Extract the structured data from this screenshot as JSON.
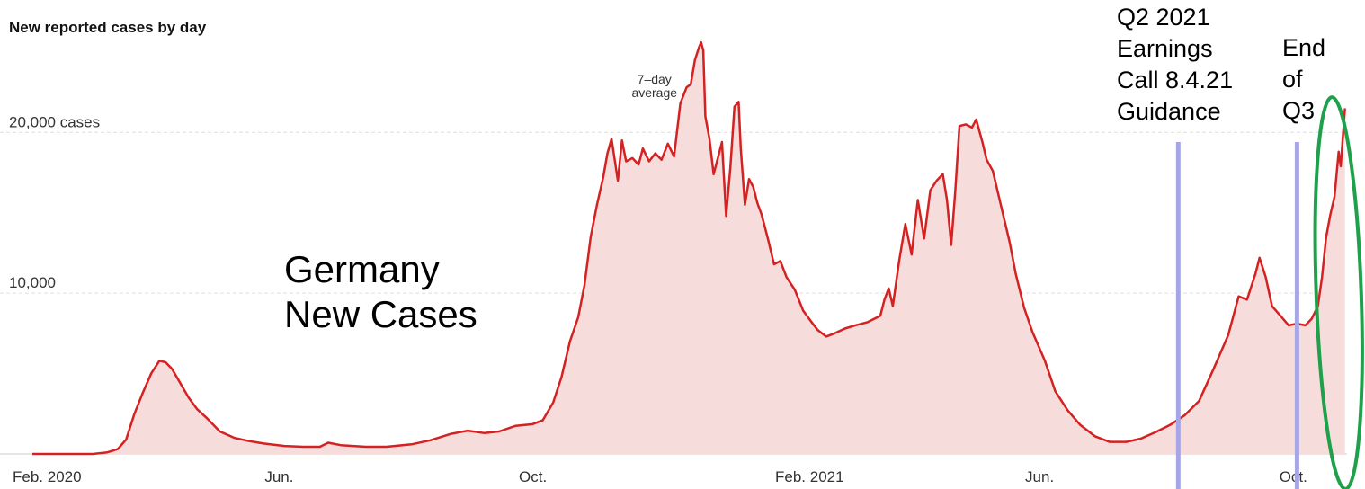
{
  "chart_data": {
    "type": "area",
    "title": "New reported cases by day",
    "xlabel": "",
    "ylabel": "",
    "ylim": [
      0,
      26000
    ],
    "y_ticks": [
      {
        "value": 10000,
        "label": "10,000"
      },
      {
        "value": 20000,
        "label": "20,000 cases"
      }
    ],
    "x_ticks": [
      {
        "value": "2020-02-01",
        "label": "Feb. 2020"
      },
      {
        "value": "2020-06-01",
        "label": "Jun."
      },
      {
        "value": "2020-10-01",
        "label": "Oct."
      },
      {
        "value": "2021-02-01",
        "label": "Feb. 2021"
      },
      {
        "value": "2021-06-01",
        "label": "Jun."
      },
      {
        "value": "2021-10-01",
        "label": "Oct."
      }
    ],
    "xlim": [
      "2020-02-01",
      "2021-10-24"
    ],
    "grid": true,
    "series": [
      {
        "name": "",
        "style": "7-day average",
        "points": [
          [
            "2020-02-01",
            0
          ],
          [
            "2020-02-15",
            0
          ],
          [
            "2020-03-01",
            0
          ],
          [
            "2020-03-08",
            100
          ],
          [
            "2020-03-13",
            300
          ],
          [
            "2020-03-17",
            900
          ],
          [
            "2020-03-21",
            2500
          ],
          [
            "2020-03-25",
            3800
          ],
          [
            "2020-03-29",
            5000
          ],
          [
            "2020-04-02",
            5800
          ],
          [
            "2020-04-05",
            5700
          ],
          [
            "2020-04-08",
            5300
          ],
          [
            "2020-04-12",
            4400
          ],
          [
            "2020-04-16",
            3500
          ],
          [
            "2020-04-20",
            2800
          ],
          [
            "2020-04-25",
            2200
          ],
          [
            "2020-05-01",
            1400
          ],
          [
            "2020-05-08",
            1000
          ],
          [
            "2020-05-15",
            800
          ],
          [
            "2020-05-22",
            650
          ],
          [
            "2020-06-01",
            500
          ],
          [
            "2020-06-10",
            450
          ],
          [
            "2020-06-18",
            450
          ],
          [
            "2020-06-22",
            700
          ],
          [
            "2020-06-28",
            550
          ],
          [
            "2020-07-10",
            450
          ],
          [
            "2020-07-20",
            450
          ],
          [
            "2020-08-01",
            600
          ],
          [
            "2020-08-10",
            850
          ],
          [
            "2020-08-20",
            1250
          ],
          [
            "2020-08-28",
            1450
          ],
          [
            "2020-09-05",
            1300
          ],
          [
            "2020-09-12",
            1400
          ],
          [
            "2020-09-20",
            1750
          ],
          [
            "2020-09-28",
            1850
          ],
          [
            "2020-10-03",
            2100
          ],
          [
            "2020-10-08",
            3200
          ],
          [
            "2020-10-12",
            4800
          ],
          [
            "2020-10-16",
            7000
          ],
          [
            "2020-10-20",
            8500
          ],
          [
            "2020-10-23",
            10500
          ],
          [
            "2020-10-26",
            13500
          ],
          [
            "2020-10-29",
            15500
          ],
          [
            "2020-11-01",
            17200
          ],
          [
            "2020-11-03",
            18700
          ],
          [
            "2020-11-05",
            19600
          ],
          [
            "2020-11-08",
            17000
          ],
          [
            "2020-11-10",
            19500
          ],
          [
            "2020-11-12",
            18200
          ],
          [
            "2020-11-15",
            18400
          ],
          [
            "2020-11-18",
            18000
          ],
          [
            "2020-11-20",
            19000
          ],
          [
            "2020-11-23",
            18200
          ],
          [
            "2020-11-26",
            18700
          ],
          [
            "2020-11-29",
            18300
          ],
          [
            "2020-12-02",
            19300
          ],
          [
            "2020-12-05",
            18500
          ],
          [
            "2020-12-08",
            21800
          ],
          [
            "2020-12-11",
            22800
          ],
          [
            "2020-12-13",
            23000
          ],
          [
            "2020-12-15",
            24500
          ],
          [
            "2020-12-17",
            25300
          ],
          [
            "2020-12-18",
            25600
          ],
          [
            "2020-12-19",
            25100
          ],
          [
            "2020-12-20",
            21000
          ],
          [
            "2020-12-22",
            19600
          ],
          [
            "2020-12-24",
            17400
          ],
          [
            "2020-12-26",
            18400
          ],
          [
            "2020-12-28",
            19400
          ],
          [
            "2020-12-30",
            14800
          ],
          [
            "2021-01-01",
            17800
          ],
          [
            "2021-01-03",
            21600
          ],
          [
            "2021-01-05",
            21900
          ],
          [
            "2021-01-06",
            19000
          ],
          [
            "2021-01-08",
            15500
          ],
          [
            "2021-01-10",
            17100
          ],
          [
            "2021-01-12",
            16600
          ],
          [
            "2021-01-14",
            15600
          ],
          [
            "2021-01-16",
            14900
          ],
          [
            "2021-01-19",
            13400
          ],
          [
            "2021-01-22",
            11800
          ],
          [
            "2021-01-25",
            12000
          ],
          [
            "2021-01-28",
            11000
          ],
          [
            "2021-02-01",
            10200
          ],
          [
            "2021-02-05",
            8900
          ],
          [
            "2021-02-09",
            8200
          ],
          [
            "2021-02-12",
            7700
          ],
          [
            "2021-02-16",
            7300
          ],
          [
            "2021-02-20",
            7500
          ],
          [
            "2021-02-25",
            7800
          ],
          [
            "2021-03-02",
            8000
          ],
          [
            "2021-03-08",
            8200
          ],
          [
            "2021-03-14",
            8600
          ],
          [
            "2021-03-16",
            9600
          ],
          [
            "2021-03-18",
            10300
          ],
          [
            "2021-03-20",
            9200
          ],
          [
            "2021-03-23",
            12000
          ],
          [
            "2021-03-26",
            14300
          ],
          [
            "2021-03-29",
            12400
          ],
          [
            "2021-04-01",
            15800
          ],
          [
            "2021-04-04",
            13400
          ],
          [
            "2021-04-07",
            16400
          ],
          [
            "2021-04-10",
            17000
          ],
          [
            "2021-04-13",
            17400
          ],
          [
            "2021-04-15",
            15800
          ],
          [
            "2021-04-17",
            13000
          ],
          [
            "2021-04-19",
            16400
          ],
          [
            "2021-04-21",
            20400
          ],
          [
            "2021-04-24",
            20500
          ],
          [
            "2021-04-27",
            20300
          ],
          [
            "2021-04-29",
            20800
          ],
          [
            "2021-05-02",
            19400
          ],
          [
            "2021-05-04",
            18300
          ],
          [
            "2021-05-07",
            17600
          ],
          [
            "2021-05-11",
            15400
          ],
          [
            "2021-05-15",
            13200
          ],
          [
            "2021-05-18",
            11200
          ],
          [
            "2021-05-22",
            9100
          ],
          [
            "2021-05-26",
            7600
          ],
          [
            "2021-06-01",
            5800
          ],
          [
            "2021-06-06",
            3900
          ],
          [
            "2021-06-12",
            2700
          ],
          [
            "2021-06-18",
            1800
          ],
          [
            "2021-06-25",
            1100
          ],
          [
            "2021-07-02",
            750
          ],
          [
            "2021-07-10",
            750
          ],
          [
            "2021-07-17",
            950
          ],
          [
            "2021-07-24",
            1350
          ],
          [
            "2021-07-31",
            1800
          ],
          [
            "2021-08-07",
            2400
          ],
          [
            "2021-08-14",
            3300
          ],
          [
            "2021-08-21",
            5300
          ],
          [
            "2021-08-28",
            7400
          ],
          [
            "2021-09-02",
            9800
          ],
          [
            "2021-09-06",
            9600
          ],
          [
            "2021-09-10",
            11200
          ],
          [
            "2021-09-12",
            12200
          ],
          [
            "2021-09-15",
            11000
          ],
          [
            "2021-09-18",
            9200
          ],
          [
            "2021-09-22",
            8600
          ],
          [
            "2021-09-26",
            8000
          ],
          [
            "2021-09-30",
            8100
          ],
          [
            "2021-10-04",
            8000
          ],
          [
            "2021-10-07",
            8400
          ],
          [
            "2021-10-10",
            9200
          ],
          [
            "2021-10-12",
            11000
          ],
          [
            "2021-10-14",
            13500
          ],
          [
            "2021-10-16",
            14900
          ],
          [
            "2021-10-18",
            16000
          ],
          [
            "2021-10-20",
            18800
          ],
          [
            "2021-10-21",
            17900
          ],
          [
            "2021-10-23",
            21500
          ]
        ]
      }
    ],
    "annotations": [
      {
        "type": "text",
        "text": "Germany\nNew Cases"
      },
      {
        "type": "text",
        "text": "7–day\naverage"
      },
      {
        "type": "vline",
        "x": "2021-08-04",
        "color": "#a6a6e6",
        "text": "Q2 2021\nEarnings\nCall  8.4.21\nGuidance"
      },
      {
        "type": "vline",
        "x": "2021-09-30",
        "color": "#a6a6e6",
        "text": "End\nof\nQ3"
      },
      {
        "type": "ellipse",
        "x": "2021-10-20",
        "color": "#1fa04a"
      }
    ],
    "colors": {
      "line": "#d42222",
      "fill": "#f7dcdc",
      "grid": "#dddddd",
      "axis": "#cccccc"
    }
  }
}
